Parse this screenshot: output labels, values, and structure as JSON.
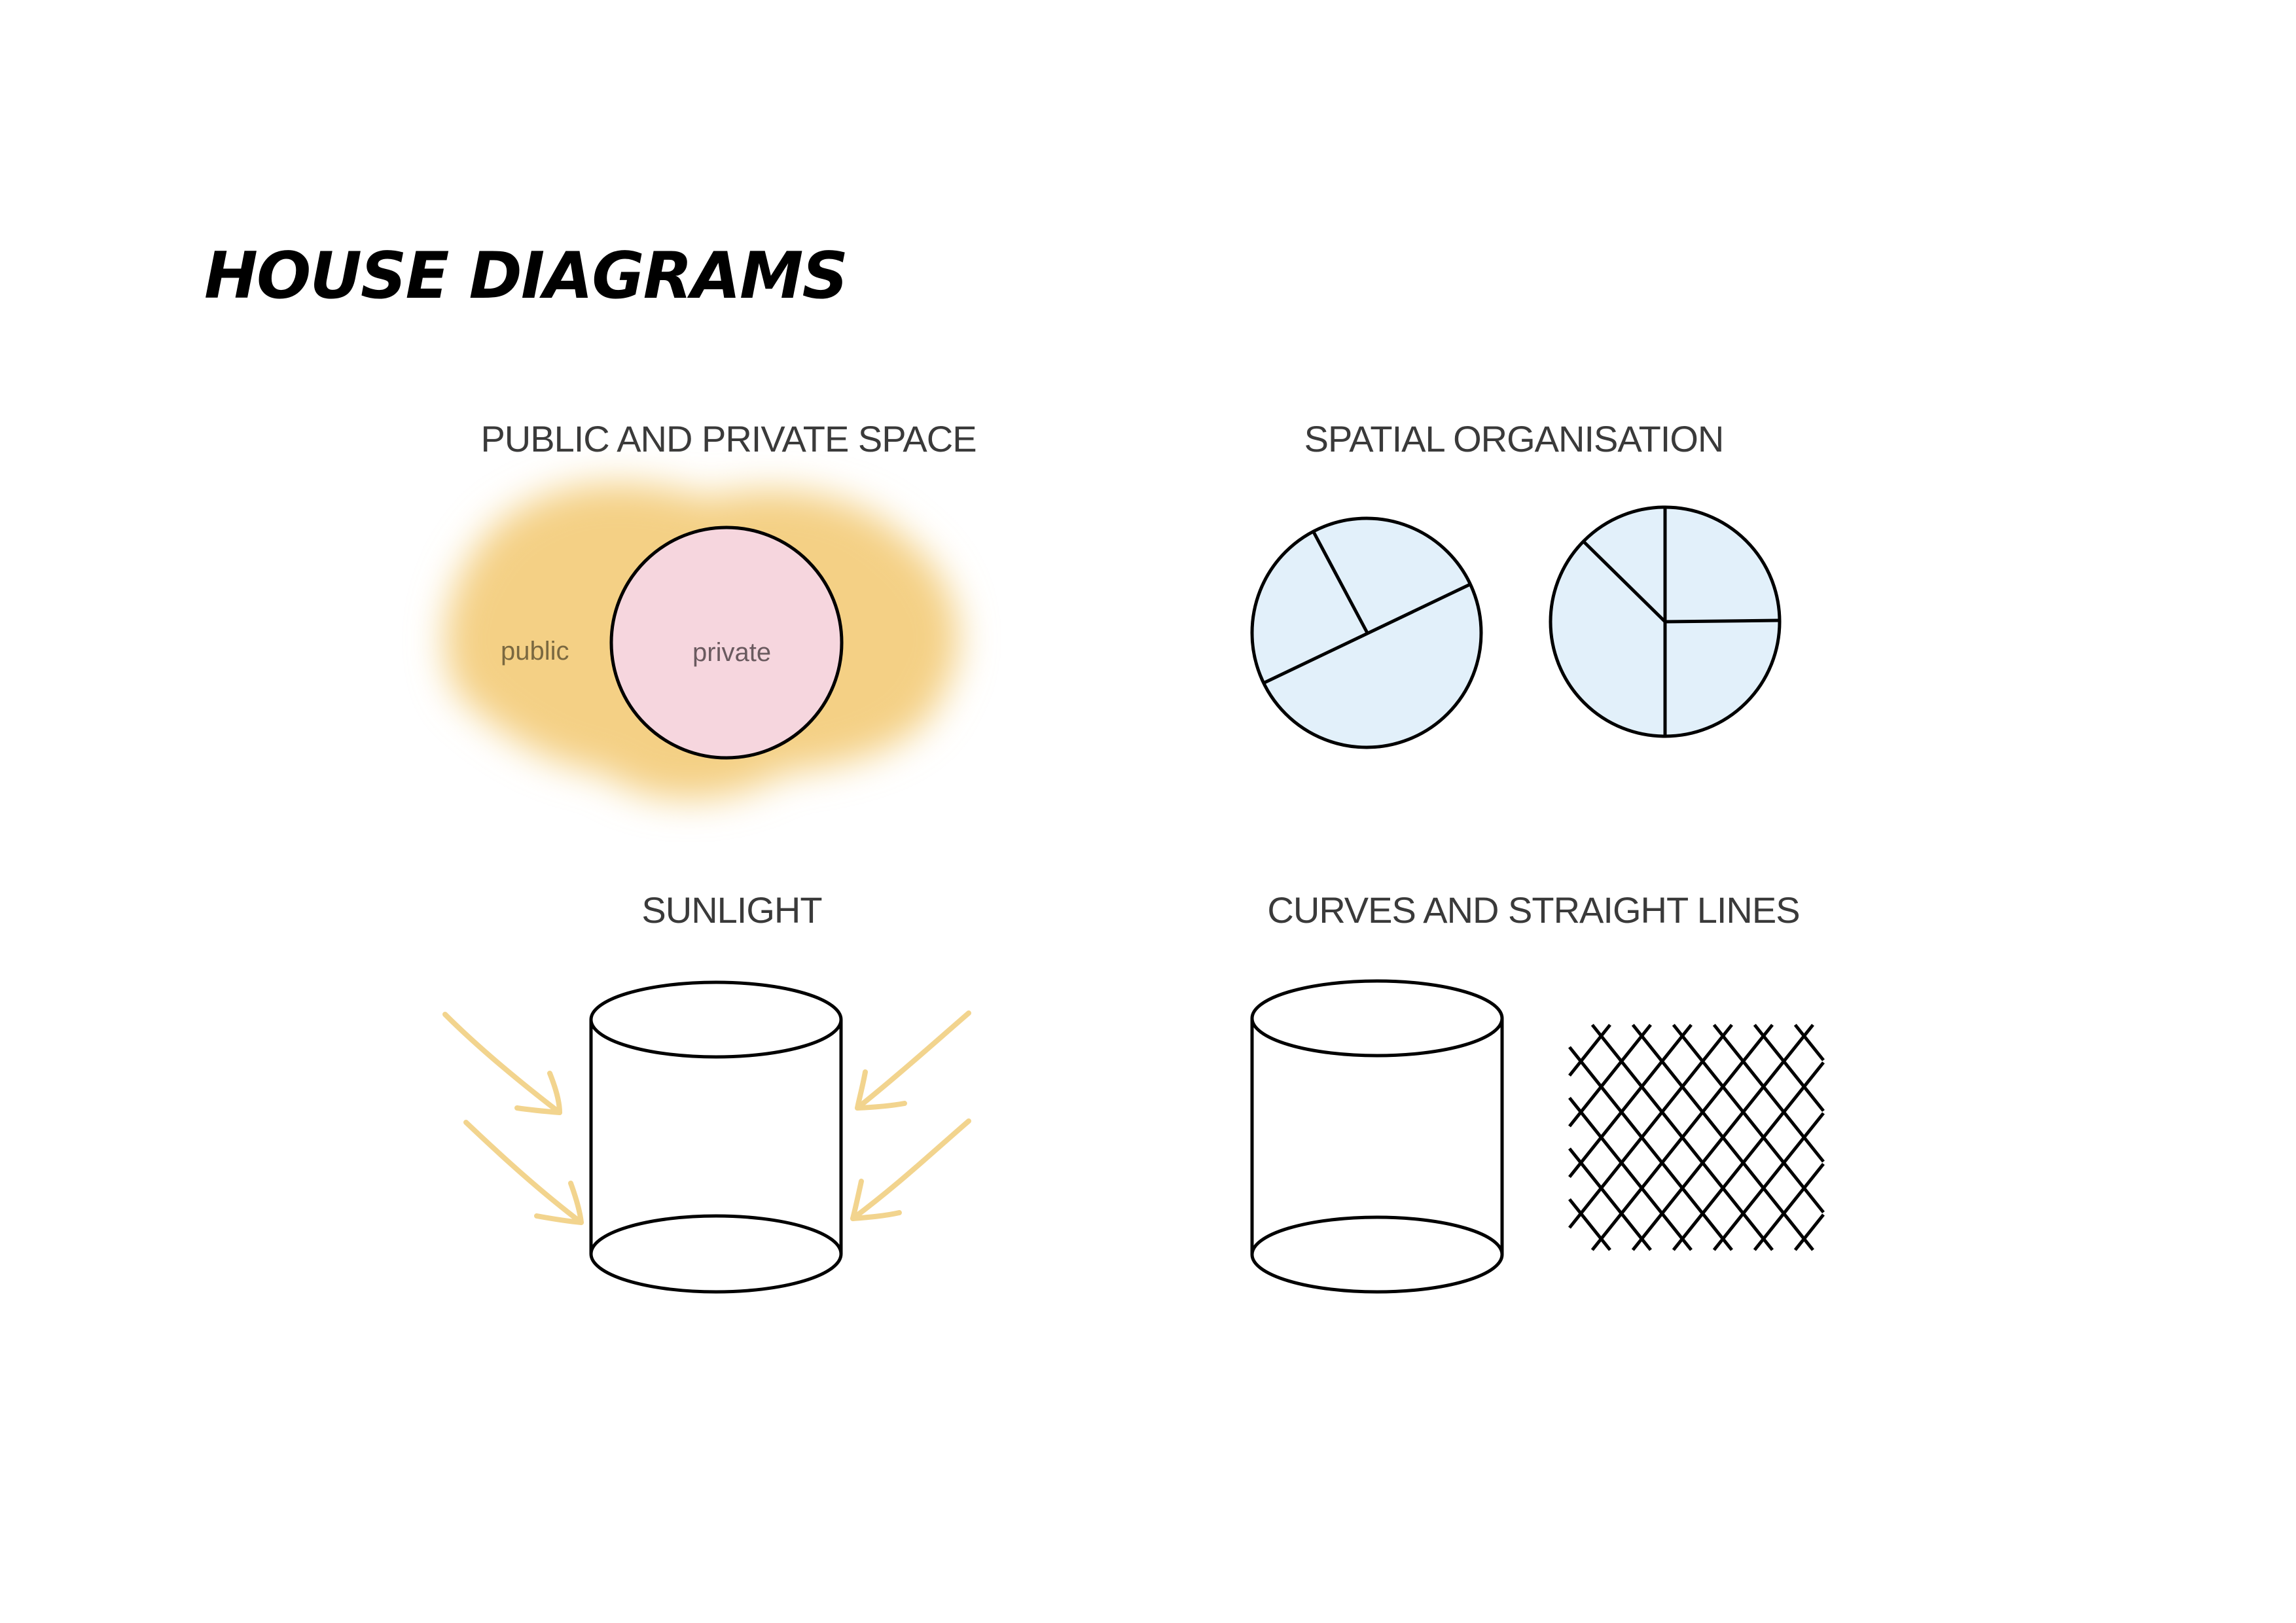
{
  "title": "HOUSE DIAGRAMS",
  "panels": {
    "public_private": {
      "heading": "PUBLIC AND PRIVATE SPACE",
      "public_label": "public",
      "private_label": "private"
    },
    "spatial": {
      "heading": "SPATIAL ORGANISATION"
    },
    "sunlight": {
      "heading": "SUNLIGHT"
    },
    "curves": {
      "heading": "CURVES AND STRAIGHT LINES"
    }
  },
  "colors": {
    "public_zone": "#f4d085",
    "private_zone": "#f6d6de",
    "room_fill": "#e2f0fa",
    "sun_arrow": "#f2d48e",
    "stroke": "#000000",
    "heading_text": "#3a3a3a",
    "public_text": "#7a6840",
    "private_text": "#6a5a5f"
  }
}
